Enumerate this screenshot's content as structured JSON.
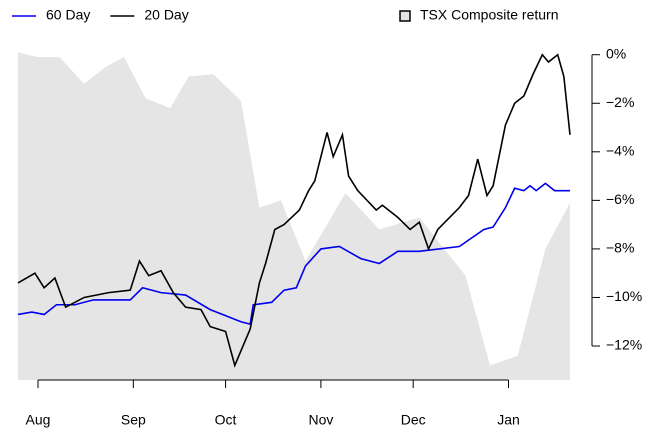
{
  "chart_data": {
    "type": "line",
    "series": [
      {
        "name": "60 Day",
        "color": "#0000ee",
        "kind": "line",
        "x": [
          -6.5,
          -2,
          2,
          6,
          12,
          18,
          24,
          30,
          34,
          40,
          48,
          56,
          62,
          66,
          69,
          70,
          76,
          80,
          84,
          87,
          92,
          98,
          105,
          111,
          117,
          124,
          137,
          145,
          148,
          152,
          155,
          158,
          160,
          162,
          165,
          168,
          173
        ],
        "values": [
          -10.7,
          -10.6,
          -10.7,
          -10.3,
          -10.3,
          -10.1,
          -10.1,
          -10.1,
          -9.6,
          -9.8,
          -9.9,
          -10.5,
          -10.8,
          -11.0,
          -11.1,
          -10.3,
          -10.2,
          -9.7,
          -9.6,
          -8.7,
          -8.0,
          -7.9,
          -8.4,
          -8.6,
          -8.1,
          -8.1,
          -7.9,
          -7.2,
          -7.1,
          -6.3,
          -5.5,
          -5.6,
          -5.4,
          -5.6,
          -5.3,
          -5.6,
          -5.6
        ]
      },
      {
        "name": "20 Day",
        "color": "#000000",
        "kind": "line",
        "x": [
          -6.5,
          -1,
          2,
          5.5,
          9,
          15,
          23,
          30,
          33,
          36,
          40,
          44,
          48,
          53,
          56,
          61,
          64,
          66,
          69,
          72,
          74,
          77,
          80,
          85,
          88,
          90,
          92,
          94,
          96,
          99,
          101,
          104,
          110,
          112,
          117,
          121,
          124,
          127,
          130,
          137,
          140,
          143,
          146,
          148,
          152,
          155,
          158,
          161,
          164,
          166,
          169,
          171,
          173
        ],
        "values": [
          -9.4,
          -9.0,
          -9.6,
          -9.2,
          -10.4,
          -10.0,
          -9.8,
          -9.7,
          -8.5,
          -9.1,
          -8.9,
          -9.8,
          -10.4,
          -10.5,
          -11.2,
          -11.4,
          -12.8,
          -12.2,
          -11.3,
          -9.4,
          -8.6,
          -7.2,
          -7.0,
          -6.4,
          -5.6,
          -5.2,
          -4.2,
          -3.2,
          -4.2,
          -3.3,
          -5.0,
          -5.6,
          -6.4,
          -6.2,
          -6.7,
          -7.2,
          -6.9,
          -8.0,
          -7.2,
          -6.3,
          -5.8,
          -4.3,
          -5.8,
          -5.4,
          -2.9,
          -2.0,
          -1.7,
          -0.8,
          0,
          -0.3,
          0,
          -0.9,
          -3.3
        ]
      },
      {
        "name": "TSX Composite return",
        "color": "#e5e5e5",
        "kind": "area",
        "x": [
          -6.5,
          0,
          7,
          15,
          22,
          28,
          35,
          43,
          49,
          57,
          66,
          72,
          79,
          87,
          100,
          111,
          124,
          139,
          147,
          156,
          165,
          173
        ],
        "values": [
          0.1,
          -0.1,
          -0.1,
          -1.2,
          -0.5,
          -0.1,
          -1.8,
          -2.2,
          -0.9,
          -0.8,
          -1.9,
          -6.3,
          -6.0,
          -8.5,
          -5.7,
          -7.2,
          -6.7,
          -9.1,
          -12.8,
          -12.4,
          -8.0,
          -6.1
        ]
      }
    ],
    "xlim": [
      -6.5,
      173
    ],
    "xticks": [
      {
        "value": 0,
        "label": "Aug"
      },
      {
        "value": 31,
        "label": "Sep"
      },
      {
        "value": 61,
        "label": "Oct"
      },
      {
        "value": 92,
        "label": "Nov"
      },
      {
        "value": 122,
        "label": "Dec"
      },
      {
        "value": 153,
        "label": "Jan"
      }
    ],
    "ylim": [
      -13.4,
      0.4
    ],
    "yticks": [
      {
        "value": 0,
        "label": "0%"
      },
      {
        "value": -2,
        "label": "−2%"
      },
      {
        "value": -4,
        "label": "−4%"
      },
      {
        "value": -6,
        "label": "−6%"
      },
      {
        "value": -8,
        "label": "−8%"
      },
      {
        "value": -10,
        "label": "−10%"
      },
      {
        "value": -12,
        "label": "−12%"
      }
    ]
  }
}
